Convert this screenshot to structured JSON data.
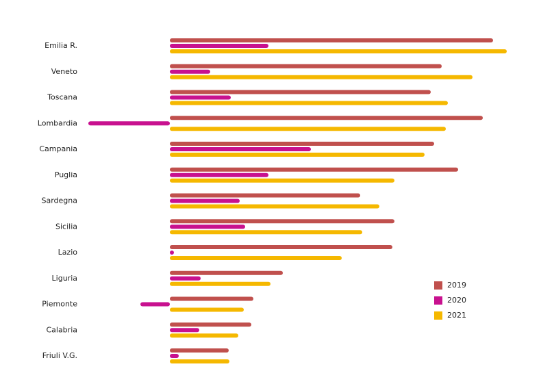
{
  "chart_data": {
    "type": "bar",
    "orientation": "horizontal",
    "categories": [
      "Emilia R.",
      "Veneto",
      "Toscana",
      "Lombardia",
      "Campania",
      "Puglia",
      "Sardegna",
      "Sicilia",
      "Lazio",
      "Liguria",
      "Piemonte",
      "Calabria",
      "Friuli V.G."
    ],
    "series": [
      {
        "name": "2019",
        "color": "#c0504d",
        "values": [
          472,
          397,
          381,
          457,
          386,
          421,
          278,
          328,
          325,
          165,
          122,
          119,
          86
        ]
      },
      {
        "name": "2020",
        "color": "#c8118f",
        "values": [
          144,
          59,
          89,
          -119,
          206,
          144,
          102,
          110,
          6,
          45,
          -43,
          43,
          13
        ]
      },
      {
        "name": "2021",
        "color": "#f5b800",
        "values": [
          492,
          442,
          406,
          403,
          372,
          328,
          306,
          281,
          251,
          147,
          108,
          100,
          87
        ]
      }
    ],
    "xlim": [
      -125,
      495
    ],
    "legend": "right"
  }
}
